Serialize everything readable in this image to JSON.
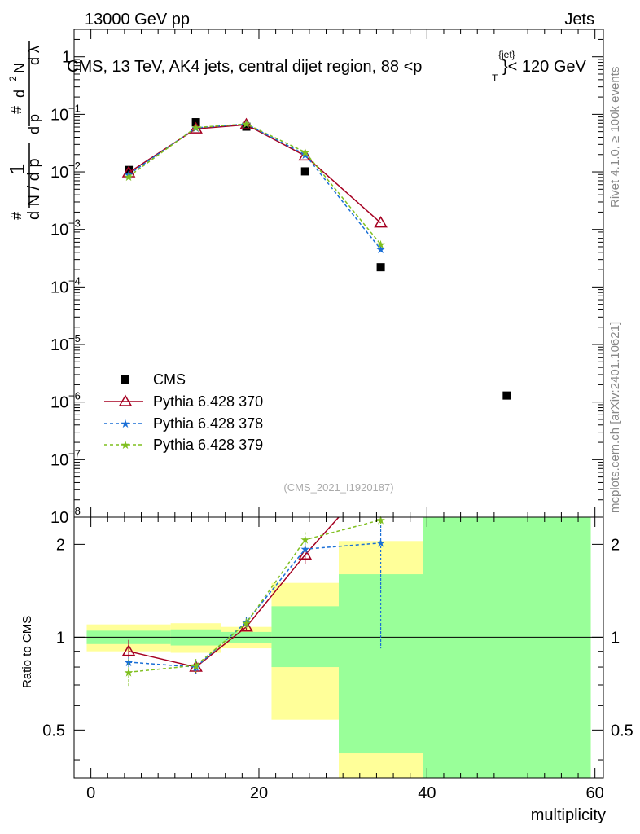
{
  "header": {
    "left": "13000 GeV pp",
    "right": "Jets",
    "plot_title": "CMS, 13 TeV, AK4 jets, central dijet region, 88 <p",
    "plot_title_sup": "{jet}",
    "plot_title_sub": "T",
    "plot_title_end": "}< 120 GeV"
  },
  "side_labels": {
    "rivet": "Rivet 4.1.0, ≥ 100k events",
    "mcplots": "mcplots.cern.ch [arXiv:2401.10621]"
  },
  "analysis_label": "(CMS_2021_I1920187)",
  "chart_data": [
    {
      "type": "scatter",
      "name": "main",
      "ylabel": "1/N dN/dλ",
      "yscale": "log",
      "ylim": [
        1e-08,
        3
      ],
      "xlim": [
        -2,
        61
      ],
      "y_ticks": [
        {
          "v": 1e-08,
          "label": "10",
          "exp": "−8"
        },
        {
          "v": 1e-07,
          "label": "10",
          "exp": "−7"
        },
        {
          "v": 1e-06,
          "label": "10",
          "exp": "−6"
        },
        {
          "v": 1e-05,
          "label": "10",
          "exp": "−5"
        },
        {
          "v": 0.0001,
          "label": "10",
          "exp": "−4"
        },
        {
          "v": 0.001,
          "label": "10",
          "exp": "−3"
        },
        {
          "v": 0.01,
          "label": "10",
          "exp": "−2"
        },
        {
          "v": 0.1,
          "label": "10",
          "exp": "−1"
        },
        {
          "v": 1,
          "label": "1",
          "exp": ""
        }
      ],
      "series": [
        {
          "name": "CMS",
          "color": "#000000",
          "marker": "square",
          "x": [
            4.5,
            12.5,
            18.5,
            25.5,
            34.5,
            49.5
          ],
          "y": [
            0.0108,
            0.073,
            0.061,
            0.0102,
            0.00022,
            1.3e-06
          ]
        },
        {
          "name": "Pythia 6.428 370",
          "color": "#a50021",
          "marker": "triangle",
          "line": "solid",
          "x": [
            4.5,
            12.5,
            18.5,
            25.5,
            34.5
          ],
          "y": [
            0.0097,
            0.056,
            0.066,
            0.019,
            0.0013
          ]
        },
        {
          "name": "Pythia 6.428 378",
          "color": "#1a6fd6",
          "marker": "star",
          "line": "dashed",
          "x": [
            4.5,
            12.5,
            18.5,
            25.5,
            34.5
          ],
          "y": [
            0.009,
            0.058,
            0.068,
            0.02,
            0.00045
          ]
        },
        {
          "name": "Pythia 6.428 379",
          "color": "#7fbf1f",
          "marker": "star",
          "line": "dashed",
          "x": [
            4.5,
            12.5,
            18.5,
            25.5,
            34.5
          ],
          "y": [
            0.0083,
            0.059,
            0.068,
            0.022,
            0.00055
          ]
        }
      ]
    },
    {
      "type": "scatter",
      "name": "ratio",
      "ylabel": "Ratio to CMS",
      "xlabel": "multiplicity",
      "yscale": "log",
      "ylim": [
        0.35,
        2.45
      ],
      "xlim": [
        -2,
        61
      ],
      "x_ticks": [
        0,
        20,
        40,
        60
      ],
      "y_ticks": [
        0.5,
        1,
        2
      ],
      "bands": [
        {
          "x0": -0.5,
          "x1": 9.5,
          "green": [
            0.95,
            1.05
          ],
          "yellow": [
            0.9,
            1.1
          ]
        },
        {
          "x0": 9.5,
          "x1": 15.5,
          "green": [
            0.94,
            1.06
          ],
          "yellow": [
            0.89,
            1.11
          ]
        },
        {
          "x0": 15.5,
          "x1": 21.5,
          "green": [
            0.96,
            1.04
          ],
          "yellow": [
            0.92,
            1.08
          ]
        },
        {
          "x0": 21.5,
          "x1": 29.5,
          "green": [
            0.8,
            1.26
          ],
          "yellow": [
            0.54,
            1.5
          ]
        },
        {
          "x0": 29.5,
          "x1": 39.5,
          "green": [
            0.42,
            1.6
          ],
          "yellow": [
            0.35,
            2.05
          ]
        },
        {
          "x0": 39.5,
          "x1": 59.5,
          "green": [
            0.35,
            2.45
          ],
          "yellow": [
            0.35,
            2.45
          ]
        }
      ],
      "series": [
        {
          "name": "Pythia 6.428 370",
          "color": "#a50021",
          "marker": "triangle",
          "line": "solid",
          "x": [
            4.5,
            12.5,
            18.5,
            25.5,
            29.5
          ],
          "y": [
            0.9,
            0.8,
            1.08,
            1.85,
            2.45
          ],
          "err": [
            0.08,
            0.04,
            0.03,
            0.12,
            0
          ]
        },
        {
          "name": "Pythia 6.428 378",
          "color": "#1a6fd6",
          "marker": "star",
          "line": "dashed",
          "x": [
            4.5,
            12.5,
            18.5,
            25.5,
            34.5
          ],
          "y": [
            0.83,
            0.8,
            1.12,
            1.93,
            2.02
          ],
          "err": [
            0.03,
            0.04,
            0.04,
            0.1,
            1.1
          ]
        },
        {
          "name": "Pythia 6.428 379",
          "color": "#7fbf1f",
          "marker": "star",
          "line": "dashed",
          "x": [
            4.5,
            12.5,
            18.5,
            25.5,
            34.5
          ],
          "y": [
            0.77,
            0.81,
            1.11,
            2.07,
            2.4
          ],
          "err": [
            0.08,
            0.04,
            0.04,
            0.12,
            0.1
          ]
        }
      ]
    }
  ]
}
